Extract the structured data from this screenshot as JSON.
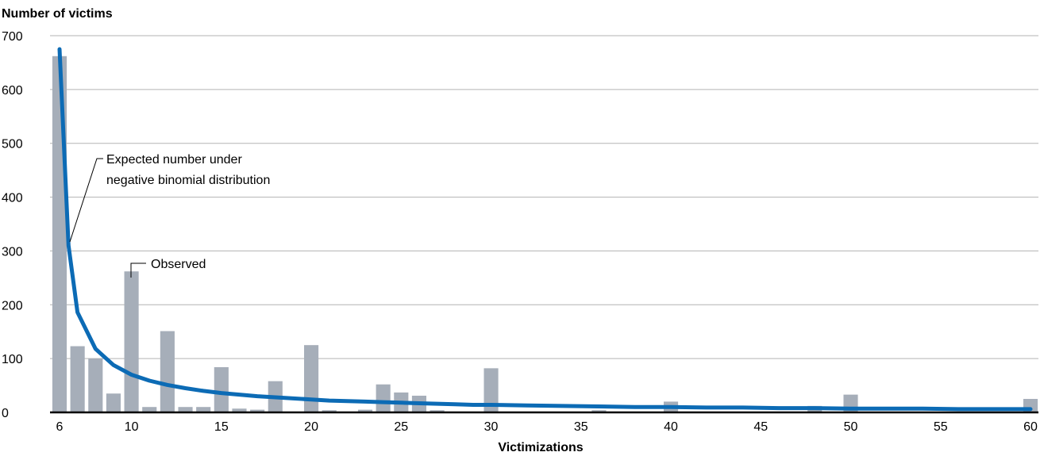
{
  "chart_data": {
    "type": "bar",
    "ylabel": "Number of victims",
    "xlabel": "Victimizations",
    "ylim": [
      0,
      700
    ],
    "xlim": [
      6,
      60
    ],
    "y_ticks": [
      "0",
      "100",
      "200",
      "300",
      "400",
      "500",
      "600",
      "700"
    ],
    "x_ticks": [
      "6",
      "10",
      "15",
      "20",
      "25",
      "30",
      "35",
      "40",
      "45",
      "50",
      "55",
      "60"
    ],
    "grid": "horizontal",
    "colors": {
      "bars": "#a6aeb9",
      "line": "#0c6bb5",
      "grid": "#b3b3b3",
      "axis": "#000000"
    },
    "series": [
      {
        "kind": "bar",
        "annotation": "Observed",
        "x": [
          6,
          7,
          8,
          9,
          10,
          11,
          12,
          13,
          14,
          15,
          16,
          17,
          18,
          20,
          21,
          23,
          24,
          25,
          26,
          27,
          30,
          36,
          40,
          48,
          50,
          60
        ],
        "values": [
          662,
          123,
          100,
          35,
          262,
          10,
          151,
          10,
          10,
          84,
          7,
          5,
          58,
          125,
          4,
          5,
          52,
          37,
          31,
          4,
          82,
          4,
          20,
          12,
          33,
          25
        ]
      },
      {
        "kind": "line",
        "annotation": "Expected number under negative binomial distribution",
        "x": [
          6,
          6.5,
          7,
          8,
          9,
          10,
          11,
          12,
          13,
          14,
          15,
          16,
          17,
          18,
          19,
          20,
          21,
          22,
          23,
          24,
          25,
          26,
          27,
          28,
          29,
          30,
          32,
          34,
          36,
          38,
          40,
          42,
          44,
          46,
          48,
          50,
          52,
          54,
          56,
          58,
          60
        ],
        "values": [
          675,
          310,
          186,
          118,
          88,
          70,
          59,
          51,
          45,
          40,
          36,
          33,
          30,
          28,
          26,
          24,
          22,
          21,
          20,
          19,
          18,
          17,
          16,
          15,
          14,
          14,
          13,
          12,
          11,
          10,
          10,
          9,
          9,
          8,
          8,
          7,
          7,
          7,
          6,
          6,
          6
        ]
      }
    ]
  }
}
